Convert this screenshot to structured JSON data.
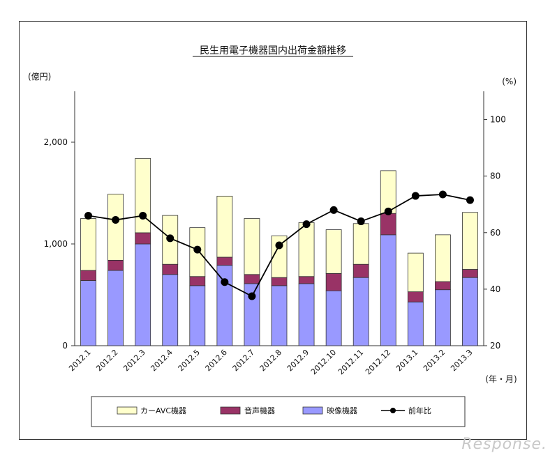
{
  "chart_data": {
    "type": "bar",
    "stacked": true,
    "title": "民生用電子機器国内出荷金額推移",
    "y_left_unit": "(億円)",
    "y_right_unit": "(%)",
    "x_unit": "(年・月)",
    "ylim_left": [
      0,
      2500
    ],
    "yticks_left": [
      "0",
      "1,000",
      "2,000"
    ],
    "ylim_right": [
      20,
      110
    ],
    "yticks_right": [
      "20",
      "40",
      "60",
      "80",
      "100"
    ],
    "categories": [
      "2012.1",
      "2012.2",
      "2012.3",
      "2012.4",
      "2012.5",
      "2012.6",
      "2012.7",
      "2012.8",
      "2012.9",
      "2012.10",
      "2012.11",
      "2012.12",
      "2013.1",
      "2013.2",
      "2013.3"
    ],
    "series": [
      {
        "name": "映像機器",
        "axis": "left",
        "kind": "bar",
        "color": "#9999ff",
        "values": [
          640,
          740,
          1000,
          700,
          590,
          790,
          610,
          590,
          610,
          540,
          670,
          1090,
          430,
          550,
          670
        ]
      },
      {
        "name": "音声機器",
        "axis": "left",
        "kind": "bar",
        "color": "#993366",
        "values": [
          100,
          100,
          110,
          100,
          90,
          80,
          90,
          80,
          70,
          170,
          130,
          210,
          100,
          80,
          80
        ]
      },
      {
        "name": "カーAVC機器",
        "axis": "left",
        "kind": "bar",
        "color": "#ffffcc",
        "values": [
          510,
          650,
          730,
          480,
          480,
          600,
          550,
          410,
          530,
          430,
          400,
          420,
          380,
          460,
          560
        ]
      },
      {
        "name": "前年比",
        "axis": "right",
        "kind": "line",
        "color": "#000000",
        "values": [
          66,
          64.5,
          66,
          58,
          54,
          42.5,
          37.5,
          55.5,
          63,
          68,
          64,
          67.5,
          73,
          73.5,
          71.5
        ]
      }
    ],
    "legend_order": [
      "カーAVC機器",
      "音声機器",
      "映像機器",
      "前年比"
    ],
    "legend_position": "bottom",
    "grid": false
  },
  "watermark": "Response."
}
